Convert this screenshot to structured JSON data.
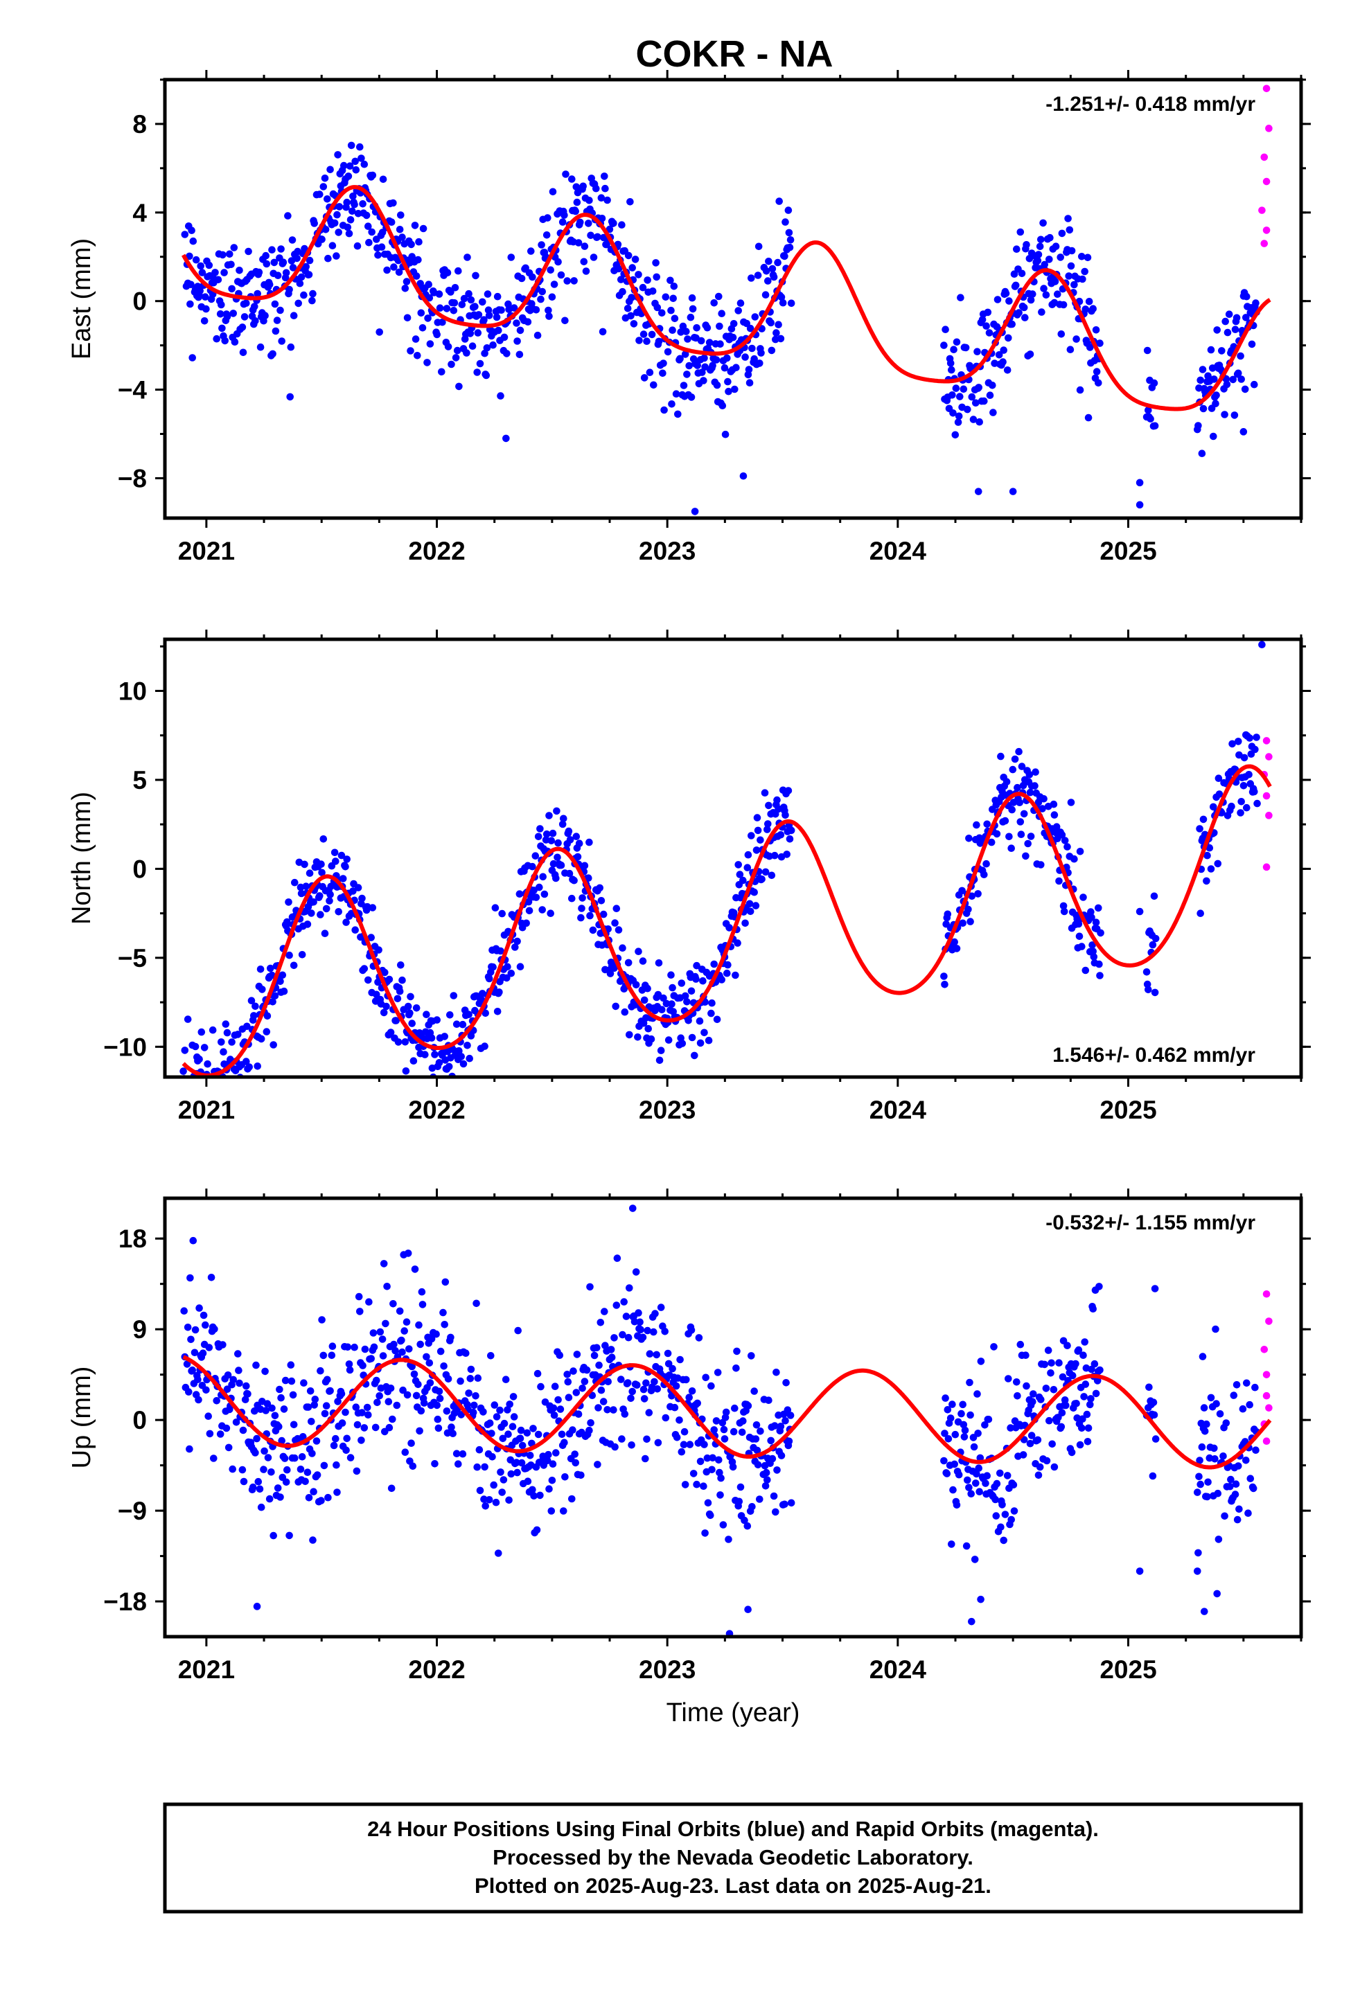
{
  "page": {
    "title": "COKR - NA",
    "footer_lines": [
      "24 Hour Positions Using Final Orbits (blue) and Rapid Orbits (magenta).",
      "Processed by the Nevada Geodetic Laboratory.",
      "Plotted on 2025-Aug-23. Last data on 2025-Aug-21."
    ]
  },
  "colors": {
    "final": "#0000ff",
    "rapid": "#ff00ff",
    "model": "#ff0000",
    "axis": "#000000"
  },
  "chart_data": [
    {
      "type": "scatter",
      "ylabel": "East (mm)",
      "xlabel": "",
      "xlim": [
        2020.82,
        2025.75
      ],
      "ylim": [
        -9.8,
        10
      ],
      "yticks": [
        8,
        4,
        0,
        -4,
        -8
      ],
      "xticks": [
        2021,
        2022,
        2023,
        2024,
        2025
      ],
      "rate": "-1.251+/- 0.418 mm/yr",
      "rate_position": "top-right",
      "model": {
        "trend": -1.251,
        "offset": -0.3,
        "annual_amp": 2.8,
        "annual_peak": 2021.65,
        "semi_amp": 0.6,
        "semi_peak": 2021.65
      },
      "final_orbits": {
        "segments": [
          [
            2020.9,
            2023.54
          ],
          [
            2024.2,
            2024.88
          ],
          [
            2025.08,
            2025.12
          ],
          [
            2025.3,
            2025.56
          ]
        ],
        "scatter": 1.3,
        "outliers": [
          [
            2022.3,
            -6.2
          ],
          [
            2023.12,
            -9.5
          ],
          [
            2023.33,
            -7.9
          ],
          [
            2024.35,
            -8.6
          ],
          [
            2024.5,
            -8.6
          ],
          [
            2025.05,
            -9.2
          ],
          [
            2025.05,
            -8.2
          ],
          [
            2025.5,
            -5.9
          ]
        ]
      },
      "rapid_orbits": [
        [
          2025.6,
          9.6
        ],
        [
          2025.61,
          7.8
        ],
        [
          2025.59,
          6.5
        ],
        [
          2025.6,
          5.4
        ],
        [
          2025.58,
          4.1
        ],
        [
          2025.6,
          3.2
        ],
        [
          2025.59,
          2.6
        ]
      ]
    },
    {
      "type": "scatter",
      "ylabel": "North (mm)",
      "xlabel": "",
      "xlim": [
        2020.82,
        2025.75
      ],
      "ylim": [
        -11.7,
        12.9
      ],
      "yticks": [
        10,
        5,
        0,
        -5,
        -10
      ],
      "xticks": [
        2021,
        2022,
        2023,
        2024,
        2025
      ],
      "rate": "1.546+/- 0.462 mm/yr",
      "rate_position": "bottom-right",
      "model": {
        "trend": 1.546,
        "offset": -3.5,
        "annual_amp": 5.2,
        "annual_peak": 2021.52,
        "semi_amp": 0.6,
        "semi_peak": 2021.52
      },
      "final_orbits": {
        "segments": [
          [
            2020.9,
            2023.54
          ],
          [
            2024.2,
            2024.88
          ],
          [
            2025.08,
            2025.12
          ],
          [
            2025.3,
            2025.56
          ]
        ],
        "scatter": 1.3,
        "outliers": [
          [
            2021.98,
            -11.2
          ],
          [
            2022.92,
            -9.8
          ],
          [
            2024.88,
            -3.6
          ],
          [
            2025.05,
            -2.4
          ],
          [
            2025.58,
            12.6
          ]
        ]
      },
      "rapid_orbits": [
        [
          2025.6,
          7.2
        ],
        [
          2025.61,
          6.3
        ],
        [
          2025.59,
          5.3
        ],
        [
          2025.6,
          4.1
        ],
        [
          2025.61,
          3.0
        ],
        [
          2025.6,
          0.1
        ]
      ]
    },
    {
      "type": "scatter",
      "ylabel": "Up (mm)",
      "xlabel": "Time (year)",
      "xlim": [
        2020.82,
        2025.75
      ],
      "ylim": [
        -21.5,
        22
      ],
      "yticks": [
        18,
        9,
        0,
        -9,
        -18
      ],
      "xticks": [
        2021,
        2022,
        2023,
        2024,
        2025
      ],
      "rate": "-0.532+/- 1.155 mm/yr",
      "rate_position": "top-right",
      "model": {
        "trend": -0.532,
        "offset": 0.8,
        "annual_amp": 4.4,
        "annual_peak": 2021.85,
        "semi_amp": 0.0,
        "semi_peak": 2021.85
      },
      "final_orbits": {
        "segments": [
          [
            2020.9,
            2023.54
          ],
          [
            2024.2,
            2024.88
          ],
          [
            2025.08,
            2025.12
          ],
          [
            2025.3,
            2025.56
          ]
        ],
        "scatter": 4.2,
        "outliers": [
          [
            2021.22,
            -18.5
          ],
          [
            2022.85,
            21
          ],
          [
            2023.27,
            -21.2
          ],
          [
            2023.35,
            -18.8
          ],
          [
            2024.32,
            -20
          ],
          [
            2024.36,
            -17.8
          ],
          [
            2025.05,
            -15
          ],
          [
            2025.33,
            -19
          ],
          [
            2025.3,
            -15
          ]
        ]
      },
      "rapid_orbits": [
        [
          2025.6,
          12.5
        ],
        [
          2025.61,
          9.8
        ],
        [
          2025.59,
          7
        ],
        [
          2025.6,
          4.5
        ],
        [
          2025.6,
          2.4
        ],
        [
          2025.61,
          1.2
        ],
        [
          2025.59,
          -0.4
        ],
        [
          2025.6,
          -2.1
        ]
      ]
    }
  ]
}
